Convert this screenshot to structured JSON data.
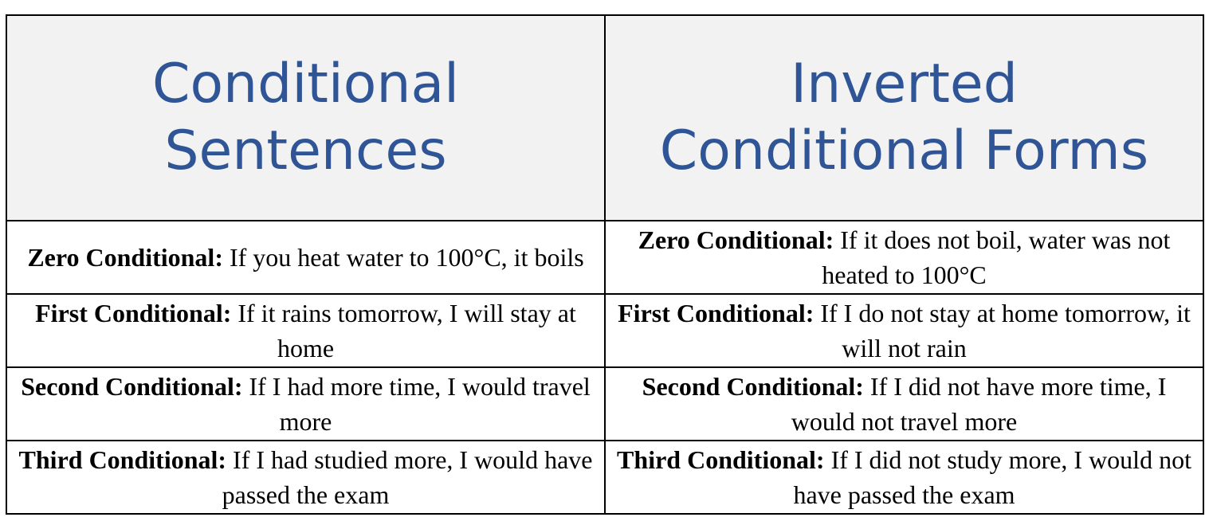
{
  "table": {
    "headers": [
      {
        "lines": [
          "Conditional",
          "Sentences"
        ]
      },
      {
        "lines": [
          "Inverted",
          "Conditional Forms"
        ]
      }
    ],
    "rows": [
      [
        {
          "label": "Zero Conditional:",
          "text": "If you heat water to 100°C, it boils"
        },
        {
          "label": "Zero Conditional:",
          "text": "If it does not boil, water was not heated to 100°C"
        }
      ],
      [
        {
          "label": "First Conditional:",
          "text": "If it rains tomorrow, I will stay at home"
        },
        {
          "label": "First Conditional:",
          "text": "If I do not stay at home tomorrow, it will not rain"
        }
      ],
      [
        {
          "label": "Second Conditional:",
          "text": "If I had more time, I would travel more"
        },
        {
          "label": "Second Conditional:",
          "text": "If I did not have more time, I would not travel more"
        }
      ],
      [
        {
          "label": "Third Conditional:",
          "text": "If I had studied more, I would have passed the exam"
        },
        {
          "label": "Third Conditional:",
          "text": "If I did not study more, I would not have passed the exam"
        }
      ]
    ]
  }
}
